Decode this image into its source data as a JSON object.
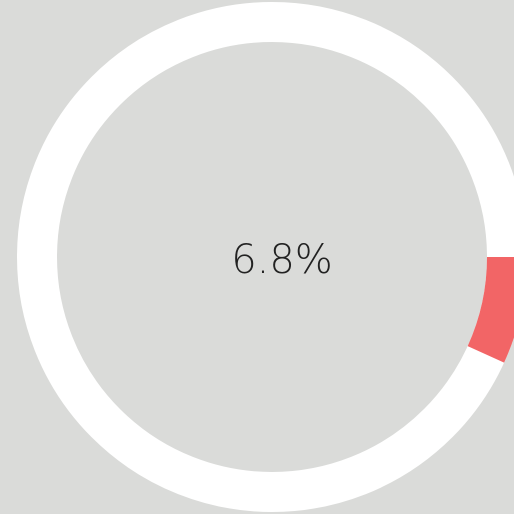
{
  "chart_data": {
    "type": "donut",
    "values": [
      6.8
    ],
    "value_labels": [
      "6.8%"
    ],
    "ylim": [
      0,
      100
    ],
    "color": "#f26566",
    "track_color": "#ffffff",
    "background": "#dadbd9"
  }
}
